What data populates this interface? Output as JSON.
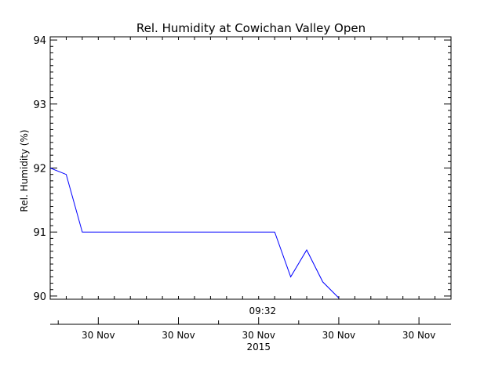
{
  "chart_data": {
    "type": "line",
    "title": "Rel. Humidity at Cowichan Valley Open",
    "ylabel": "Rel. Humidity (%)",
    "xlabel": "",
    "ylim": [
      89.95,
      94.05
    ],
    "yticks": [
      90,
      91,
      92,
      93,
      94
    ],
    "ytick_labels": [
      "90",
      "91",
      "92",
      "93",
      "94"
    ],
    "xlim": [
      0,
      100
    ],
    "x_inner_label": "09:32",
    "x_inner_label_pos": 53,
    "x_major_ticks": [
      12,
      32,
      52,
      72,
      92
    ],
    "x_tick_labels": [
      "30 Nov",
      "30 Nov",
      "30 Nov",
      "30 Nov",
      "30 Nov"
    ],
    "x_year_label": "2015",
    "line_color": "#0000ff",
    "grid": false,
    "series": [
      {
        "x": [
          0,
          4,
          8,
          56,
          60,
          64,
          68,
          72
        ],
        "y": [
          92.0,
          91.9,
          91.0,
          91.0,
          90.3,
          90.72,
          90.22,
          89.97
        ]
      }
    ]
  }
}
